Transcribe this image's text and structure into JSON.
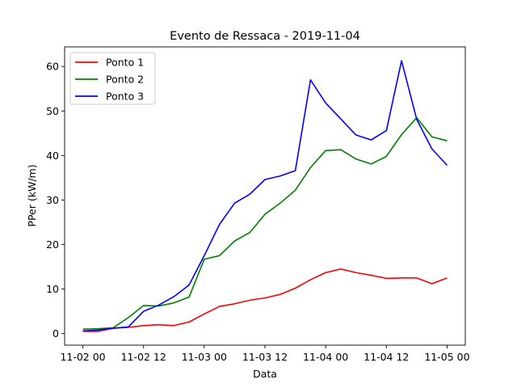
{
  "chart_data": {
    "type": "line",
    "title": "Evento de Ressaca - 2019-11-04",
    "xlabel": "Data",
    "ylabel": "PPer (kW/m)",
    "x_unit_note": "hours from 2019-11-02 00:00",
    "x": [
      0,
      3,
      6,
      9,
      12,
      15,
      18,
      21,
      24,
      27,
      30,
      33,
      36,
      39,
      42,
      45,
      48,
      51,
      54,
      57,
      60,
      63,
      66,
      69,
      72
    ],
    "x_ticks": [
      {
        "x": 0,
        "label": "11-02 00"
      },
      {
        "x": 12,
        "label": "11-02 12"
      },
      {
        "x": 24,
        "label": "11-03 00"
      },
      {
        "x": 36,
        "label": "11-03 12"
      },
      {
        "x": 48,
        "label": "11-04 00"
      },
      {
        "x": 60,
        "label": "11-04 12"
      },
      {
        "x": 72,
        "label": "11-05 00"
      }
    ],
    "y_ticks": [
      0,
      10,
      20,
      30,
      40,
      50,
      60
    ],
    "xlim": [
      -3.6,
      75.6
    ],
    "ylim": [
      -2.6,
      64.4
    ],
    "legend_position": "upper-left",
    "grid": false,
    "series": [
      {
        "name": "Ponto 1",
        "color": "#ff0000",
        "values": [
          0.5,
          0.5,
          1.2,
          1.4,
          1.8,
          2.0,
          1.8,
          2.6,
          4.4,
          6.1,
          6.7,
          7.5,
          8.0,
          8.8,
          10.2,
          12.1,
          13.7,
          14.5,
          13.7,
          13.1,
          12.4,
          12.5,
          12.5,
          11.2,
          12.5
        ]
      },
      {
        "name": "Ponto 2",
        "color": "#008000",
        "values": [
          1.0,
          1.1,
          1.3,
          3.6,
          6.3,
          6.2,
          6.9,
          8.2,
          16.7,
          17.5,
          20.8,
          22.7,
          26.8,
          29.3,
          32.2,
          37.3,
          41.1,
          41.3,
          39.2,
          38.1,
          39.8,
          44.7,
          48.5,
          44.2,
          43.3
        ]
      },
      {
        "name": "Ponto 3",
        "color": "#0000ff",
        "values": [
          0.6,
          0.8,
          1.2,
          1.5,
          5.0,
          6.4,
          8.3,
          10.9,
          17.5,
          24.5,
          29.3,
          31.3,
          34.6,
          35.4,
          36.6,
          57.0,
          51.8,
          48.2,
          44.6,
          43.5,
          45.6,
          61.3,
          48.1,
          41.5,
          37.8
        ]
      }
    ]
  }
}
